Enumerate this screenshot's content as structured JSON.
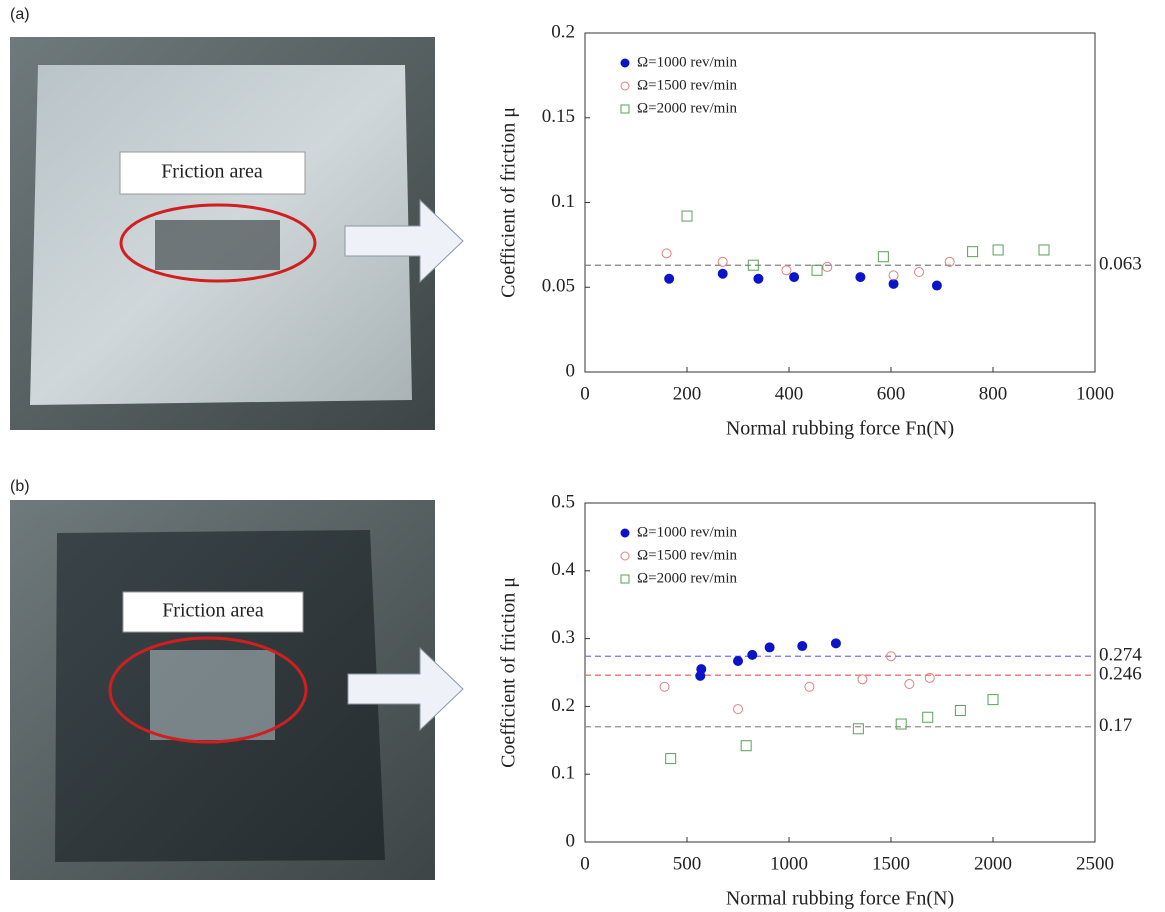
{
  "panels": [
    {
      "label": "(a)",
      "photo_label": "Friction area"
    },
    {
      "label": "(b)",
      "photo_label": "Friction area"
    }
  ],
  "chart_data": [
    {
      "type": "scatter",
      "x_label": "Normal rubbing force Fn(N)",
      "y_label": "Coefficient of friction μ",
      "xlim": [
        0,
        1000
      ],
      "xticks": [
        0,
        200,
        400,
        600,
        800,
        1000
      ],
      "ylim": [
        0,
        0.2
      ],
      "yticks": [
        0,
        0.05,
        0.1,
        0.15,
        0.2
      ],
      "legend": "upper left",
      "series": [
        {
          "name": "Ω=1000 rev/min",
          "color": "#0a14c8",
          "marker": "filled-circle",
          "x": [
            165,
            270,
            340,
            410,
            540,
            605,
            690
          ],
          "values": [
            0.055,
            0.058,
            0.055,
            0.056,
            0.056,
            0.052,
            0.051
          ]
        },
        {
          "name": "Ω=1500 rev/min",
          "color": "#e08080",
          "marker": "circle",
          "x": [
            160,
            270,
            395,
            475,
            605,
            655,
            715
          ],
          "values": [
            0.07,
            0.065,
            0.06,
            0.062,
            0.057,
            0.059,
            0.065
          ]
        },
        {
          "name": "Ω=2000 rev/min",
          "color": "#5aa05a",
          "marker": "square",
          "x": [
            200,
            330,
            455,
            585,
            760,
            810,
            900
          ],
          "values": [
            0.092,
            0.063,
            0.06,
            0.068,
            0.071,
            0.072,
            0.072
          ]
        }
      ],
      "reference_lines": [
        {
          "value": 0.063,
          "label": "0.063",
          "color": "#808080"
        }
      ]
    },
    {
      "type": "scatter",
      "x_label": "Normal rubbing force Fn(N)",
      "y_label": "Coefficient of friction μ",
      "xlim": [
        0,
        2500
      ],
      "xticks": [
        0,
        500,
        1000,
        1500,
        2000,
        2500
      ],
      "ylim": [
        0,
        0.5
      ],
      "yticks": [
        0,
        0.1,
        0.2,
        0.3,
        0.4,
        0.5
      ],
      "legend": "upper left",
      "series": [
        {
          "name": "Ω=1000 rev/min",
          "color": "#0a14c8",
          "marker": "filled-circle",
          "x": [
            565,
            570,
            750,
            820,
            905,
            1065,
            1230
          ],
          "values": [
            0.245,
            0.255,
            0.267,
            0.276,
            0.287,
            0.289,
            0.293
          ]
        },
        {
          "name": "Ω=1500 rev/min",
          "color": "#e08080",
          "marker": "circle",
          "x": [
            390,
            750,
            1100,
            1360,
            1500,
            1590,
            1690
          ],
          "values": [
            0.229,
            0.196,
            0.229,
            0.24,
            0.274,
            0.233,
            0.242
          ]
        },
        {
          "name": "Ω=2000 rev/min",
          "color": "#5aa05a",
          "marker": "square",
          "x": [
            420,
            790,
            1340,
            1550,
            1680,
            1840,
            2000
          ],
          "values": [
            0.123,
            0.142,
            0.167,
            0.174,
            0.184,
            0.194,
            0.21
          ]
        }
      ],
      "reference_lines": [
        {
          "value": 0.274,
          "label": "0.274",
          "color": "#7070f0"
        },
        {
          "value": 0.246,
          "label": "0.246",
          "color": "#f07070"
        },
        {
          "value": 0.17,
          "label": "0.17",
          "color": "#909090"
        }
      ]
    }
  ]
}
